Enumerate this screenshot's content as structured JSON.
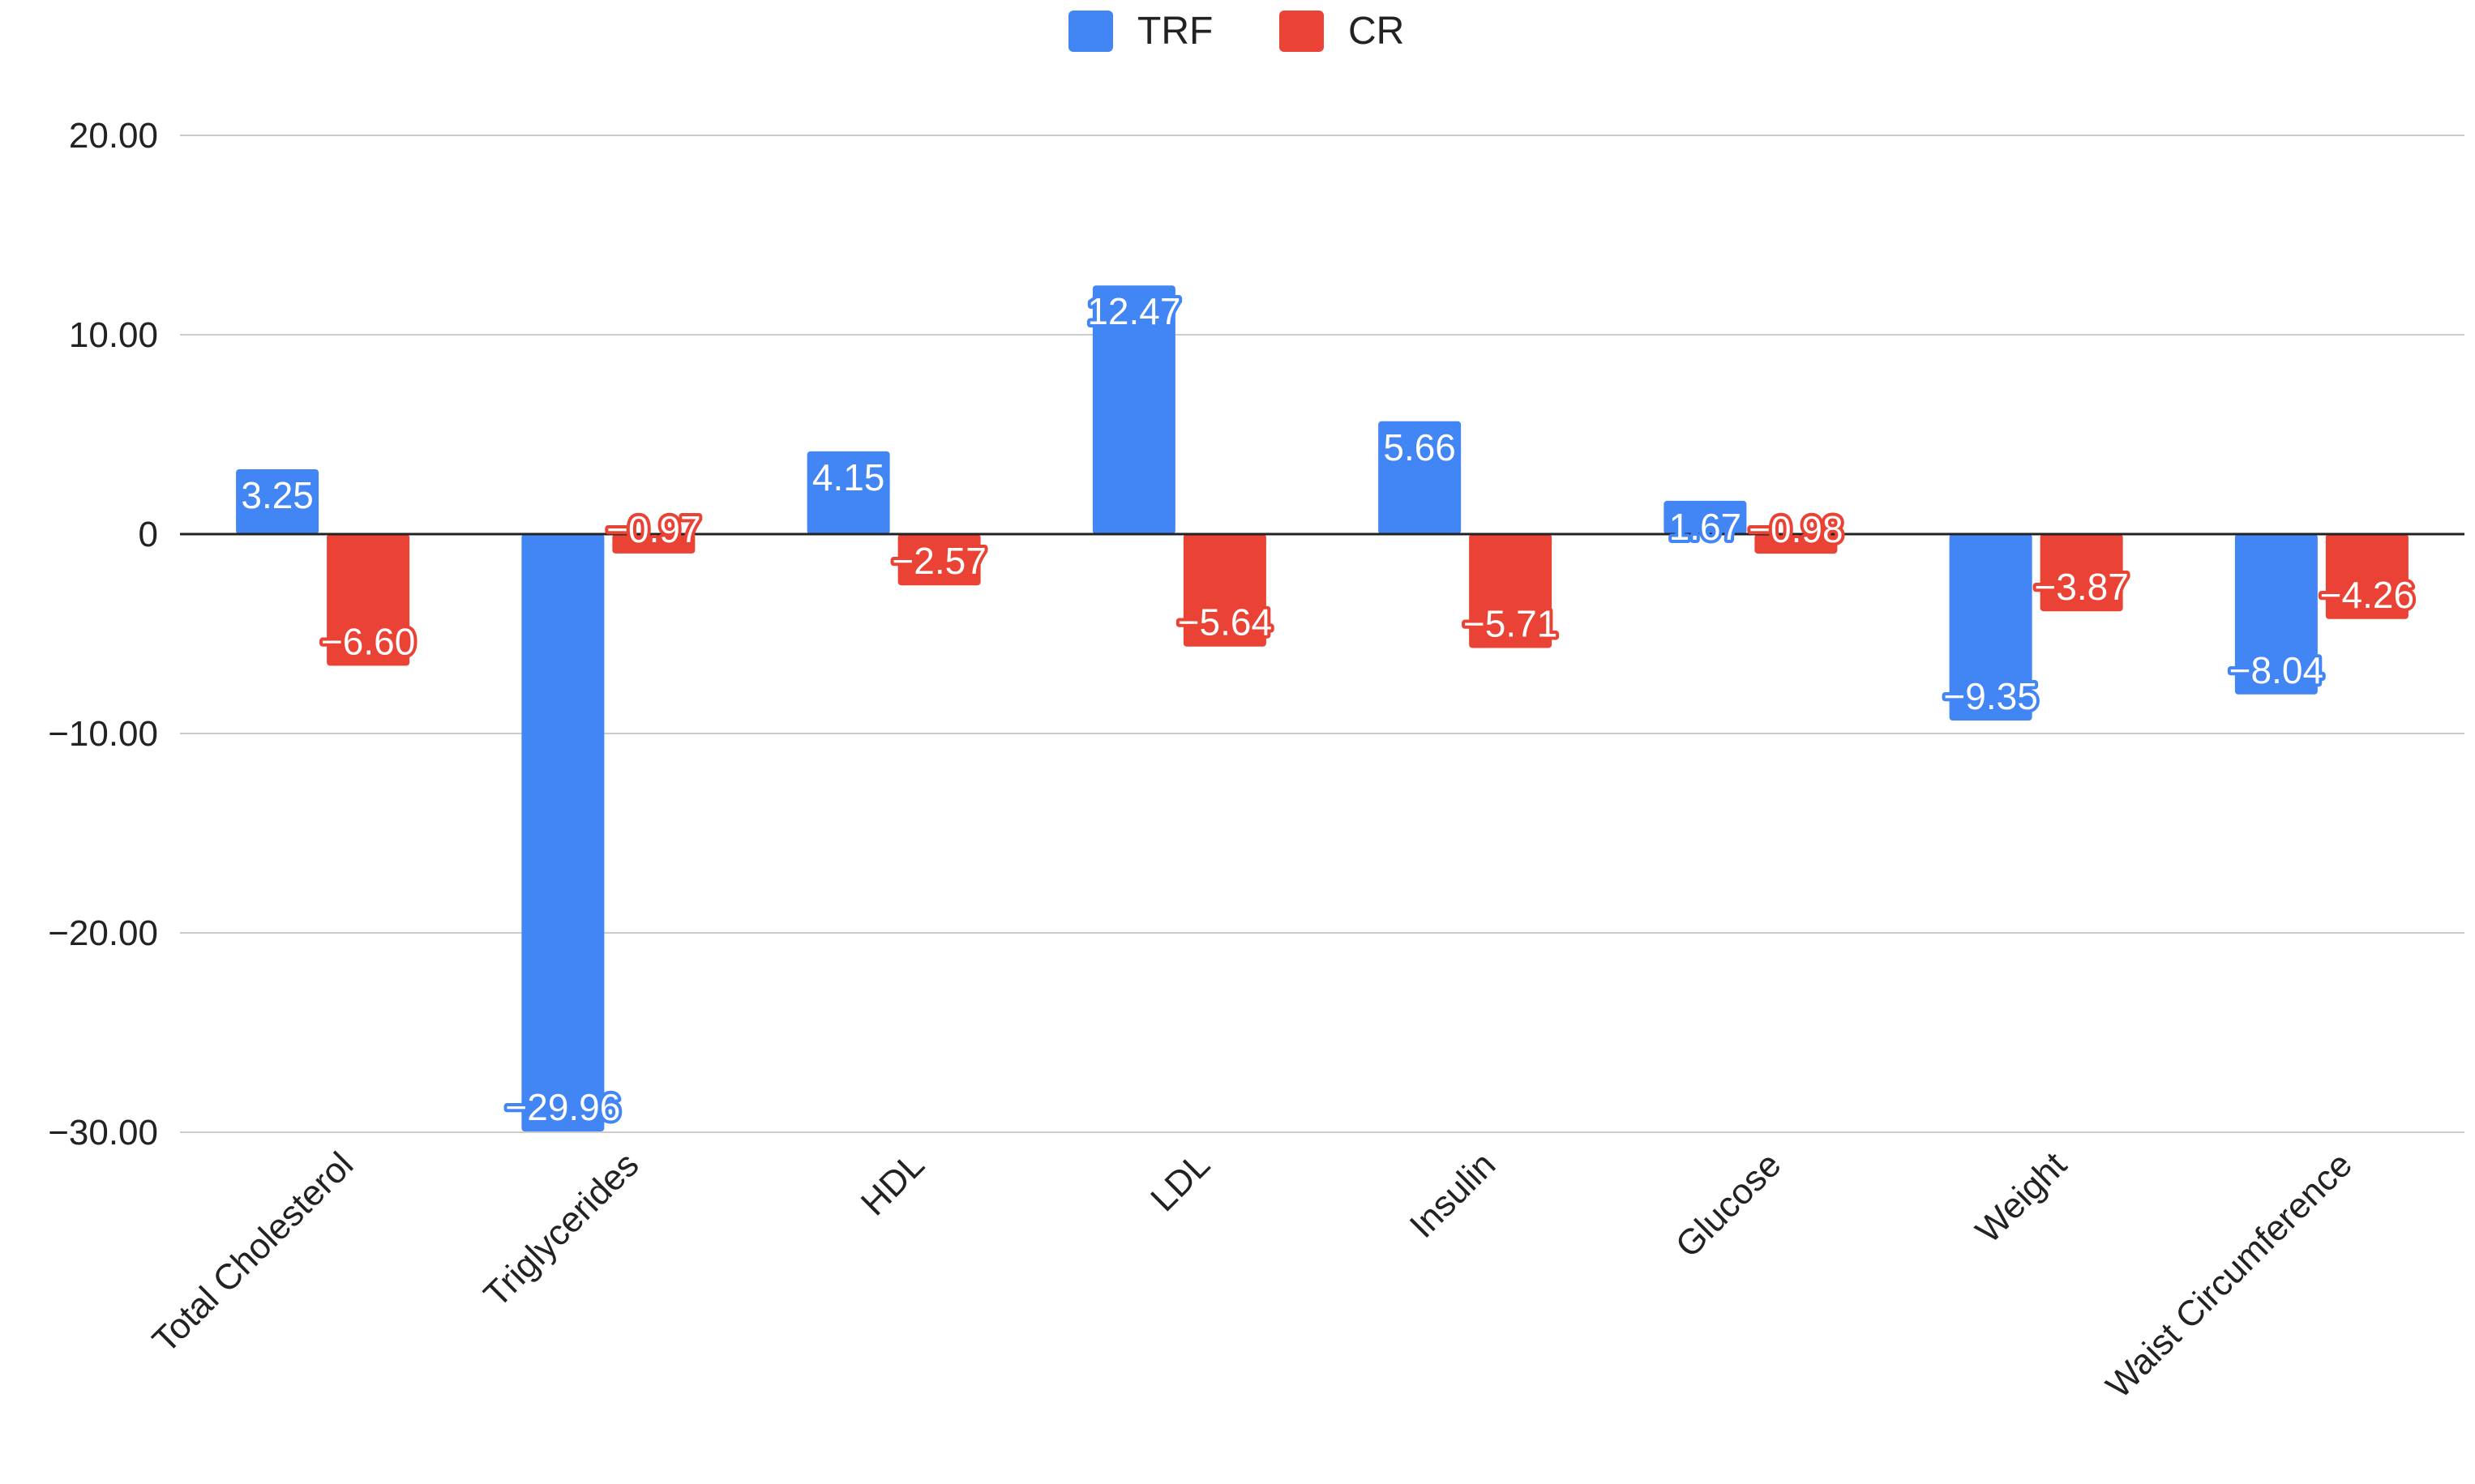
{
  "chart_data": {
    "type": "bar",
    "title": "",
    "xlabel": "",
    "ylabel": "",
    "categories": [
      "Total Cholesterol",
      "Triglycerides",
      "HDL",
      "LDL",
      "Insulin",
      "Glucose",
      "Weight",
      "Waist Circumference"
    ],
    "series": [
      {
        "name": "TRF",
        "color": "#4285f4",
        "values": [
          3.25,
          -29.96,
          4.15,
          12.47,
          5.66,
          1.67,
          -9.35,
          -8.04
        ],
        "labels": [
          "3.25",
          "−29.96",
          "4.15",
          "12.47",
          "5.66",
          "1.67",
          "−9.35",
          "−8.04"
        ]
      },
      {
        "name": "CR",
        "color": "#ea4335",
        "values": [
          -6.6,
          -0.97,
          -2.57,
          -5.64,
          -5.71,
          -0.98,
          -3.87,
          -4.26
        ],
        "labels": [
          "−6.60",
          "−0.97",
          "−2.57",
          "−5.64",
          "−5.71",
          "−0.98",
          "−3.87",
          "−4.26"
        ]
      }
    ],
    "ylim": [
      -30,
      20
    ],
    "yticks": [
      20,
      10,
      0,
      -10,
      -20,
      -30
    ],
    "ytick_labels": [
      "20.00",
      "10.00",
      "0",
      "−10.00",
      "−20.00",
      "−30.00"
    ],
    "grid": true,
    "legend_position": "top-center"
  }
}
